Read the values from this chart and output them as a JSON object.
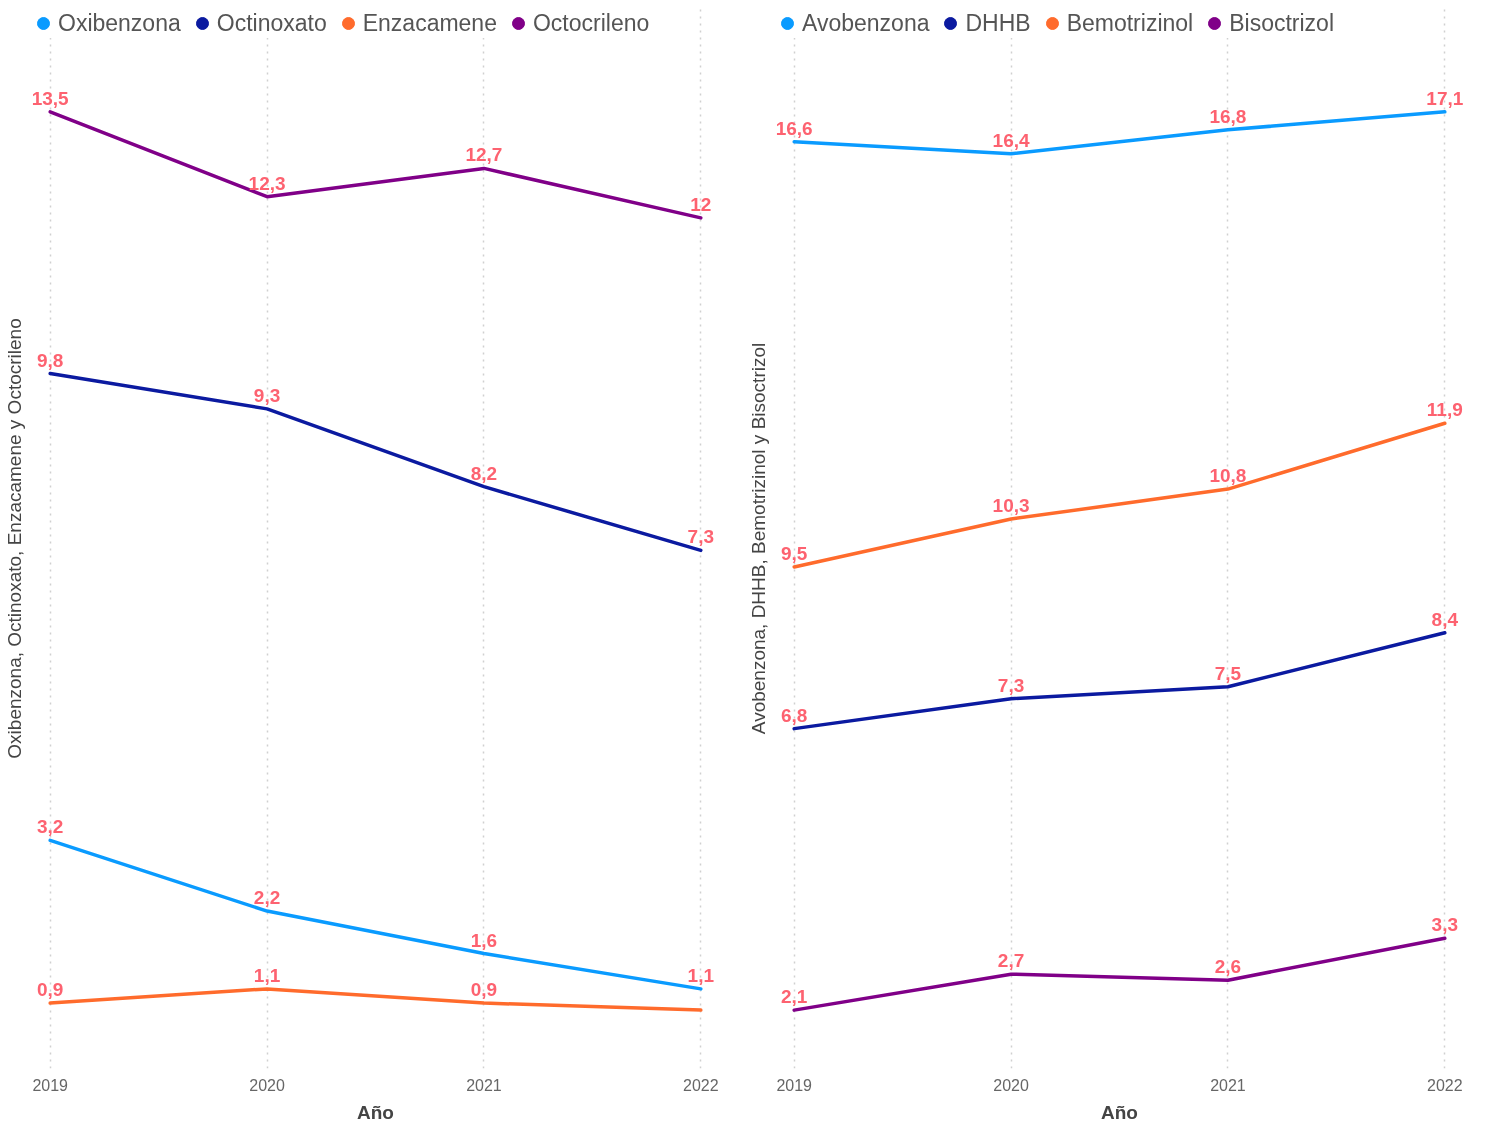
{
  "chart_data": [
    {
      "type": "line",
      "categories": [
        "2019",
        "2020",
        "2021",
        "2022"
      ],
      "xlabel": "Año",
      "ylabel": "Oxibenzona, Octinoxato, Enzacamene y Octocrileno",
      "legend": "top left",
      "grid": "x",
      "marker": "none",
      "line_style": "solid",
      "tick_labels": "x",
      "series": [
        {
          "name": "Oxibenzona",
          "color": "#0a9bff",
          "values": [
            3.2,
            2.2,
            1.6,
            1.1
          ],
          "value_labels": [
            "3,2",
            "2,2",
            "1,6",
            "1,1"
          ]
        },
        {
          "name": "Octinoxato",
          "color": "#0b1aa0",
          "values": [
            9.8,
            9.3,
            8.2,
            7.3
          ],
          "value_labels": [
            "9,8",
            "9,3",
            "8,2",
            "7,3"
          ]
        },
        {
          "name": "Enzacamene",
          "color": "#ff6b2c",
          "values": [
            0.9,
            1.1,
            0.9,
            0.8
          ],
          "value_labels": [
            "0,9",
            "1,1",
            "0,9",
            null
          ]
        },
        {
          "name": "Octocrileno",
          "color": "#800088",
          "values": [
            13.5,
            12.3,
            12.7,
            12
          ],
          "value_labels": [
            "13,5",
            "12,3",
            "12,7",
            "12"
          ]
        }
      ]
    },
    {
      "type": "line",
      "categories": [
        "2019",
        "2020",
        "2021",
        "2022"
      ],
      "xlabel": "Año",
      "ylabel": "Avobenzona, DHHB, Bemotrizinol y Bisoctrizol",
      "legend": "top left",
      "grid": "x",
      "marker": "none",
      "line_style": "solid",
      "tick_labels": "x",
      "series": [
        {
          "name": "Avobenzona",
          "color": "#0a9bff",
          "values": [
            16.6,
            16.4,
            16.8,
            17.1
          ],
          "value_labels": [
            "16,6",
            "16,4",
            "16,8",
            "17,1"
          ]
        },
        {
          "name": "DHHB",
          "color": "#0b1aa0",
          "values": [
            6.8,
            7.3,
            7.5,
            8.4
          ],
          "value_labels": [
            "6,8",
            "7,3",
            "7,5",
            "8,4"
          ]
        },
        {
          "name": "Bemotrizinol",
          "color": "#ff6b2c",
          "values": [
            9.5,
            10.3,
            10.8,
            11.9
          ],
          "value_labels": [
            "9,5",
            "10,3",
            "10,8",
            "11,9"
          ]
        },
        {
          "name": "Bisoctrizol",
          "color": "#800088",
          "values": [
            2.1,
            2.7,
            2.6,
            3.3
          ],
          "value_labels": [
            "2,1",
            "2,7",
            "2,6",
            "3,3"
          ]
        }
      ]
    }
  ]
}
